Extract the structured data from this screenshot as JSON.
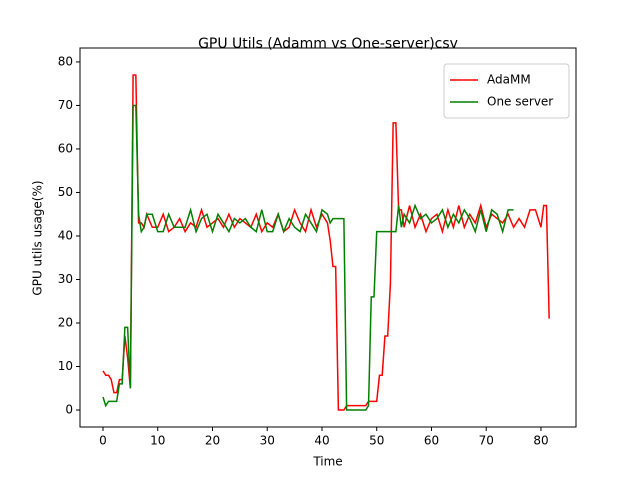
{
  "chart_data": {
    "type": "line",
    "title": "GPU Utils (Adamm vs One-server)csv",
    "xlabel": "Time",
    "ylabel": "GPU utils usage(%)",
    "x": [
      0,
      0.5,
      1,
      1.5,
      2,
      2.5,
      3,
      3.5,
      4,
      4.5,
      5,
      5.5,
      6,
      6.5,
      7,
      7.5,
      8,
      9,
      10,
      11,
      12,
      13,
      14,
      15,
      16,
      17,
      18,
      19,
      20,
      21,
      22,
      23,
      24,
      25,
      26,
      27,
      28,
      29,
      30,
      31,
      32,
      33,
      34,
      35,
      36,
      37,
      38,
      39,
      40,
      41,
      41.5,
      42,
      42.5,
      43,
      43.5,
      44,
      44.5,
      45,
      46,
      47,
      48,
      48.5,
      49,
      49.5,
      50,
      50.5,
      51,
      51.5,
      52,
      52.5,
      53,
      53.5,
      54,
      54.5,
      55,
      56,
      57,
      58,
      59,
      60,
      61,
      62,
      63,
      64,
      65,
      66,
      67,
      68,
      69,
      70,
      71,
      72,
      73,
      74,
      75,
      76,
      77,
      78,
      79,
      80,
      80.5,
      81,
      81.5
    ],
    "series": [
      {
        "name": "AdaMM",
        "color": "#ff0000",
        "values": [
          9,
          8,
          8,
          7,
          4,
          4,
          7,
          7,
          17,
          12,
          5,
          77,
          77,
          43,
          43,
          42,
          45,
          42,
          42,
          45,
          41,
          42,
          44,
          41,
          43,
          42,
          46,
          42,
          43,
          44,
          42,
          45,
          42,
          44,
          43,
          42,
          45,
          41,
          43,
          42,
          45,
          41,
          42,
          46,
          43,
          41,
          46,
          42,
          45,
          43,
          39,
          33,
          33,
          0,
          0,
          0,
          1,
          1,
          1,
          1,
          1,
          2,
          2,
          2,
          2,
          8,
          8,
          17,
          17,
          29,
          66,
          66,
          46,
          46,
          42,
          47,
          42,
          45,
          41,
          44,
          45,
          41,
          46,
          42,
          47,
          42,
          45,
          43,
          47,
          42,
          45,
          44,
          43,
          45,
          42,
          44,
          42,
          46,
          46,
          42,
          47,
          47,
          21
        ]
      },
      {
        "name": "One server",
        "color": "#008000",
        "values": [
          3,
          1,
          2,
          2,
          2,
          2,
          6,
          6,
          19,
          19,
          5,
          70,
          70,
          45,
          41,
          42,
          45,
          45,
          41,
          41,
          45,
          42,
          42,
          42,
          46,
          41,
          44,
          45,
          41,
          45,
          43,
          41,
          44,
          43,
          44,
          42,
          41,
          46,
          41,
          41,
          45,
          41,
          44,
          42,
          41,
          45,
          43,
          41,
          46,
          45,
          43,
          44,
          44,
          44,
          44,
          44,
          0,
          0,
          0,
          0,
          0,
          1,
          26,
          26,
          41,
          41,
          41,
          41,
          41,
          41,
          41,
          41,
          47,
          42,
          45,
          43,
          47,
          44,
          45,
          43,
          44,
          46,
          42,
          45,
          43,
          46,
          44,
          41,
          46,
          41,
          46,
          45,
          41,
          46,
          46,
          null,
          null,
          null,
          null,
          null,
          null,
          null,
          null
        ]
      }
    ],
    "xlim": [
      -4.2,
      86.4
    ],
    "ylim": [
      -3.9,
      83.2
    ],
    "xticks": [
      0,
      10,
      20,
      30,
      40,
      50,
      60,
      70,
      80
    ],
    "yticks": [
      0,
      10,
      20,
      30,
      40,
      50,
      60,
      70,
      80
    ],
    "legend": "upper right",
    "grid": false
  }
}
